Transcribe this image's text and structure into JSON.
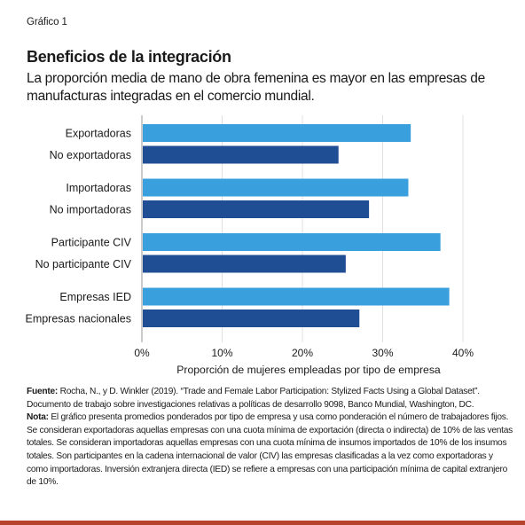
{
  "header": {
    "chart_label": "Gráfico 1",
    "title": "Beneficios de la integración",
    "subtitle": "La proporción media de mano de obra femenina es mayor en las empresas de manufacturas integradas en el comercio mundial."
  },
  "chart_data": {
    "type": "bar",
    "orientation": "horizontal",
    "xlabel": "Proporción de mujeres empleadas por tipo de empresa",
    "xlim": [
      0,
      40
    ],
    "xticks": [
      "0%",
      "10%",
      "20%",
      "30%",
      "40%"
    ],
    "grid": true,
    "legend": "none",
    "groups": [
      {
        "bars": [
          {
            "label": "Exportadoras",
            "value": 33.5,
            "color": "#3aa0dd"
          },
          {
            "label": "No exportadoras",
            "value": 24.5,
            "color": "#1f4e94"
          }
        ]
      },
      {
        "bars": [
          {
            "label": "Importadoras",
            "value": 33.2,
            "color": "#3aa0dd"
          },
          {
            "label": "No importadoras",
            "value": 28.3,
            "color": "#1f4e94"
          }
        ]
      },
      {
        "bars": [
          {
            "label": "Participante CIV",
            "value": 37.2,
            "color": "#3aa0dd"
          },
          {
            "label": "No participante CIV",
            "value": 25.4,
            "color": "#1f4e94"
          }
        ]
      },
      {
        "bars": [
          {
            "label": "Empresas IED",
            "value": 38.3,
            "color": "#3aa0dd"
          },
          {
            "label": "Empresas nacionales",
            "value": 27.1,
            "color": "#1f4e94"
          }
        ]
      }
    ]
  },
  "notes": {
    "source_label": "Fuente:",
    "source_text": "Rocha, N., y D. Winkler (2019). “Trade and Female Labor Participation: Stylized Facts Using a Global Dataset”. Documento de trabajo sobre investigaciones relativas a políticas de desarrollo 9098, Banco Mundial, Washington, DC.",
    "note_label": "Nota:",
    "note_text": "El gráfico presenta promedios ponderados por tipo de empresa y usa como ponderación el número de trabajadores fijos. Se consideran exportadoras aquellas empresas con una cuota mínima de exportación (directa o indirecta) de 10% de las ventas totales. Se consideran importadoras aquellas empresas con una cuota mínima de insumos importados de 10% de los insumos totales. Son participantes en la cadena internacional de valor (CIV) las empresas clasificadas a la vez como exportadoras y como importadoras. Inversión extranjera directa (IED) se refiere a empresas con una participación mínima de capital extranjero de 10%."
  },
  "colors": {
    "light_bar": "#3aa0dd",
    "dark_bar": "#1f4e94",
    "grid": "#d9d9d9",
    "bottom_rule": "#b5432c"
  }
}
